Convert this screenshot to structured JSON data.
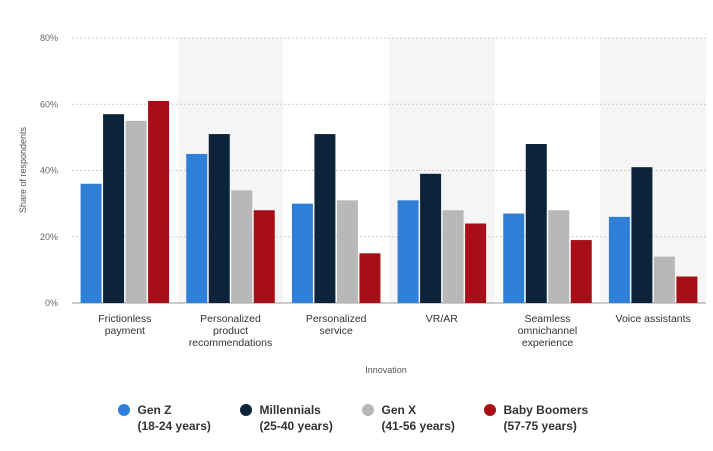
{
  "chart_data": {
    "type": "bar",
    "categories": [
      [
        "Frictionless",
        "payment"
      ],
      [
        "Personalized",
        "product",
        "recommendations"
      ],
      [
        "Personalized",
        "service"
      ],
      [
        "VR/AR"
      ],
      [
        "Seamless",
        "omnichannel",
        "experience"
      ],
      [
        "Voice assistants"
      ]
    ],
    "series": [
      {
        "name": "Gen Z",
        "sub": "(18-24 years)",
        "color": "#2f7ed8",
        "values": [
          36,
          45,
          30,
          31,
          27,
          26
        ]
      },
      {
        "name": "Millennials",
        "sub": "(25-40 years)",
        "color": "#0d233a",
        "values": [
          57,
          51,
          51,
          39,
          48,
          41
        ]
      },
      {
        "name": "Gen X",
        "sub": "(41-56 years)",
        "color": "#b8b8b8",
        "values": [
          55,
          34,
          31,
          28,
          28,
          14
        ]
      },
      {
        "name": "Baby Boomers",
        "sub": "(57-75 years)",
        "color": "#a50f15",
        "values": [
          61,
          28,
          15,
          24,
          19,
          8
        ]
      }
    ],
    "ylabel": "Share of respondents",
    "xlabel": "Innovation",
    "ylim": [
      0,
      80
    ],
    "yticks": [
      "0%",
      "20%",
      "40%",
      "60%",
      "80%"
    ],
    "grid": true,
    "legend_position": "bottom"
  }
}
